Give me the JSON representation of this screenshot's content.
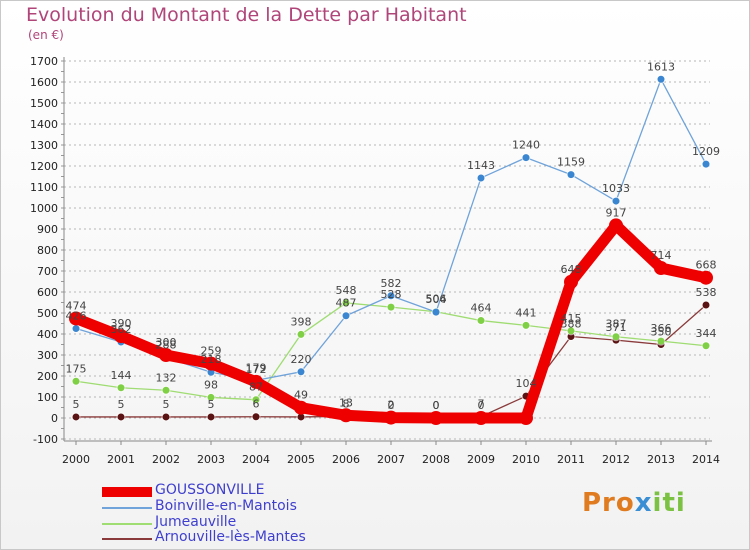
{
  "title": "Evolution du Montant de la Dette par Habitant",
  "subtitle": "(en €)",
  "logo_text": "Proxiti",
  "colors": {
    "title": "#b0457a",
    "legend_text": "#3f3fcf",
    "grid": "#b7b7b7"
  },
  "chart_data": {
    "type": "line",
    "title": "Evolution du Montant de la Dette par Habitant",
    "xlabel": "",
    "ylabel": "(en €)",
    "ylim": [
      -100,
      1700
    ],
    "yticks": [
      -100,
      0,
      100,
      200,
      300,
      400,
      500,
      600,
      700,
      800,
      900,
      1000,
      1100,
      1200,
      1300,
      1400,
      1500,
      1600,
      1700
    ],
    "categories": [
      "2000",
      "2001",
      "2002",
      "2003",
      "2004",
      "2005",
      "2006",
      "2007",
      "2008",
      "2009",
      "2010",
      "2011",
      "2012",
      "2013",
      "2014"
    ],
    "grid": "horizontal dashed",
    "legend_position": "bottom-left",
    "series": [
      {
        "name": "GOUSSONVILLE",
        "color": "#ee0000",
        "values": [
          474,
          390,
          300,
          259,
          172,
          49,
          13,
          2,
          0,
          0,
          0,
          648,
          917,
          714,
          668
        ],
        "labels": [
          "474",
          "390",
          "300",
          "259",
          "172",
          "49",
          "13",
          "2",
          "0",
          "0",
          "",
          "648",
          "917",
          "714",
          "668"
        ]
      },
      {
        "name": "Boinville-en-Mantois",
        "color": "#4f8fd0",
        "values": [
          426,
          362,
          288,
          218,
          179,
          220,
          487,
          582,
          504,
          1143,
          1240,
          1159,
          1033,
          1613,
          1209
        ],
        "labels": [
          "426",
          "362",
          "288",
          "218",
          "179",
          "220",
          "487",
          "582",
          "504",
          "1143",
          "1240",
          "1159",
          "1033",
          "1613",
          "1209"
        ]
      },
      {
        "name": "Jumeauville",
        "color": "#8fd45a",
        "values": [
          175,
          144,
          132,
          98,
          87,
          398,
          548,
          528,
          506,
          464,
          441,
          415,
          387,
          366,
          344
        ],
        "labels": [
          "175",
          "144",
          "132",
          "98",
          "87",
          "398",
          "548",
          "528",
          "506",
          "464",
          "441",
          "415",
          "387",
          "366",
          "344"
        ]
      },
      {
        "name": "Arnouville-lès-Mantes",
        "color": "#7a2a2a",
        "values": [
          5,
          5,
          5,
          5,
          6,
          5,
          8,
          0,
          0,
          7,
          104,
          388,
          371,
          350,
          538
        ],
        "labels": [
          "5",
          "5",
          "5",
          "5",
          "6",
          "",
          "8",
          "0",
          "0",
          "7",
          "104",
          "388",
          "371",
          "350",
          "538"
        ]
      }
    ]
  }
}
